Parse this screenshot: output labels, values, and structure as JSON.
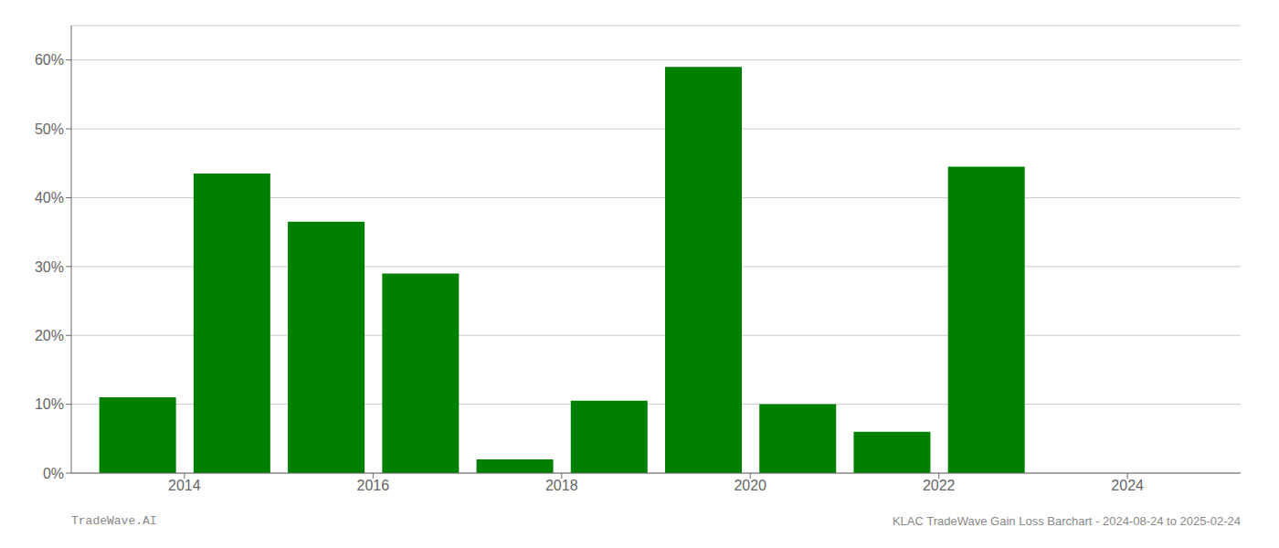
{
  "chart_data": {
    "type": "bar",
    "x": [
      2013.5,
      2014.5,
      2015.5,
      2016.5,
      2017.5,
      2018.5,
      2019.5,
      2020.5,
      2021.5,
      2022.5
    ],
    "values": [
      11.0,
      43.5,
      36.5,
      29.0,
      2.0,
      10.5,
      59.0,
      10.0,
      6.0,
      44.5
    ],
    "color": "#008000",
    "xlim": [
      2012.8,
      2025.2
    ],
    "xticks": [
      2014,
      2016,
      2018,
      2020,
      2022,
      2024
    ],
    "ylim": [
      0,
      65
    ],
    "yticks": [
      {
        "value": 0,
        "label": "0%"
      },
      {
        "value": 10,
        "label": "10%"
      },
      {
        "value": 20,
        "label": "20%"
      },
      {
        "value": 30,
        "label": "30%"
      },
      {
        "value": 40,
        "label": "40%"
      },
      {
        "value": 50,
        "label": "50%"
      },
      {
        "value": 60,
        "label": "60%"
      }
    ],
    "grid": true,
    "annotations": [
      "TradeWave.AI",
      "KLAC TradeWave Gain Loss Barchart - 2024-08-24 to 2025-02-24"
    ]
  }
}
